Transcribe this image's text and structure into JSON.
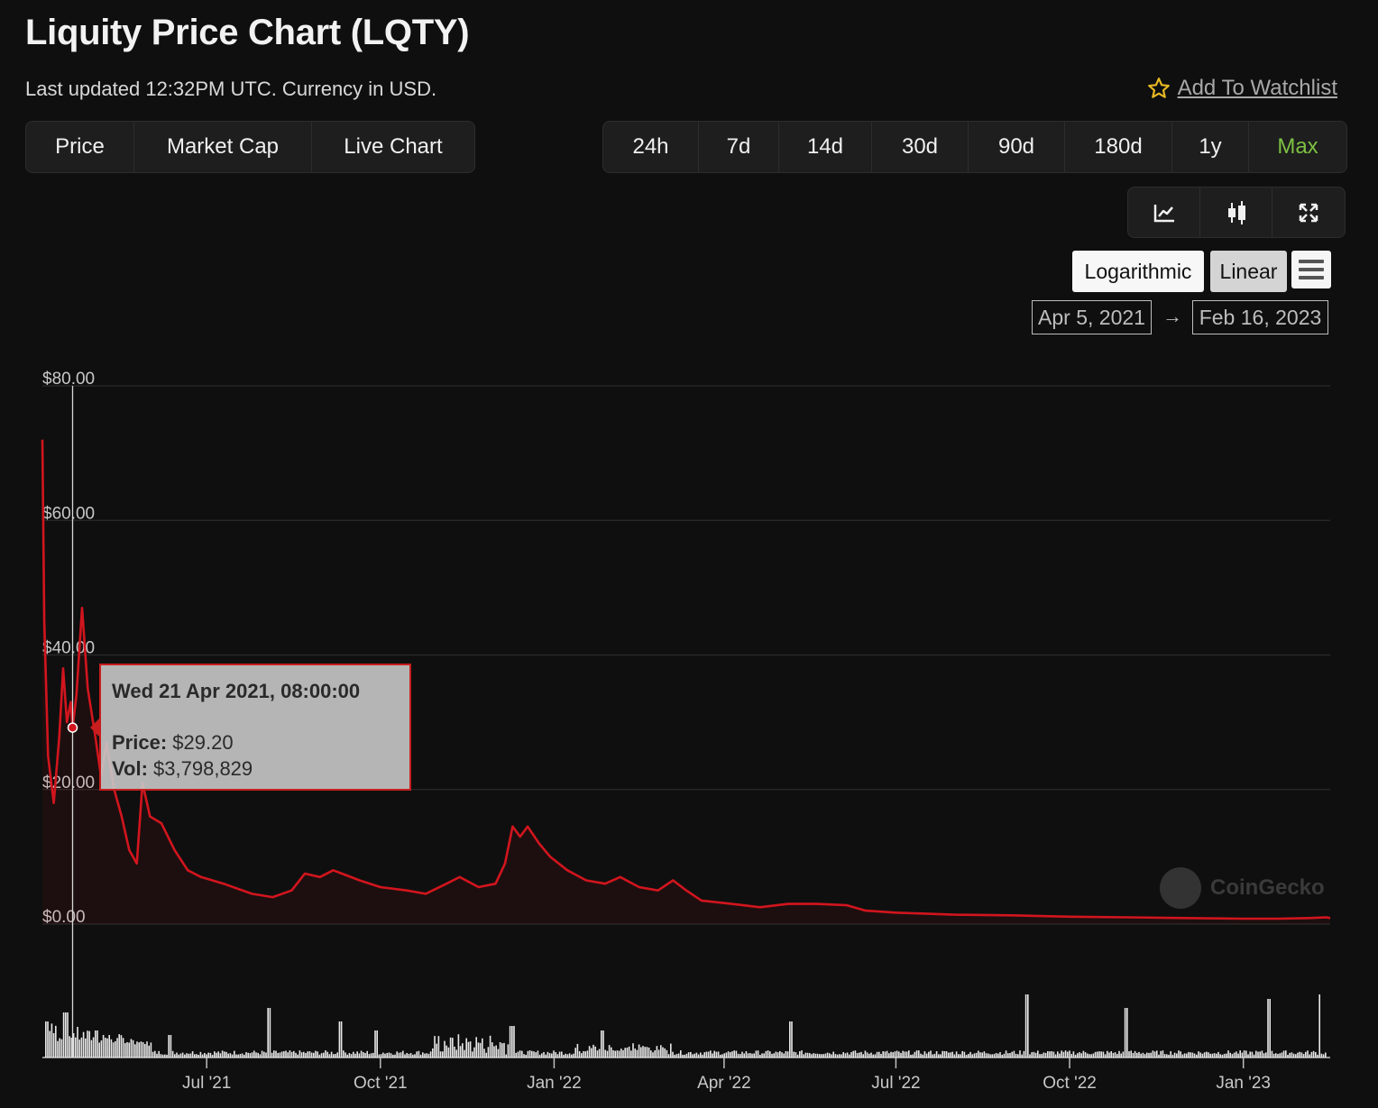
{
  "header": {
    "title": "Liquity Price Chart (LQTY)",
    "subtitle": "Last updated 12:32PM UTC. Currency in USD.",
    "watchlist_label": "Add To Watchlist"
  },
  "view_tabs": [
    "Price",
    "Market Cap",
    "Live Chart"
  ],
  "range_tabs": [
    "24h",
    "7d",
    "14d",
    "30d",
    "90d",
    "180d",
    "1y",
    "Max"
  ],
  "active_range": "Max",
  "chart_type_icons": [
    "line-chart-icon",
    "candlestick-icon",
    "fullscreen-icon"
  ],
  "scale": {
    "log_label": "Logarithmic",
    "linear_label": "Linear",
    "selected": "Linear"
  },
  "date_range": {
    "from": "Apr 5, 2021",
    "arrow": "→",
    "to": "Feb 16, 2023"
  },
  "tooltip": {
    "date": "Wed 21 Apr 2021, 08:00:00",
    "price_label": "Price:",
    "price_value": "$29.20",
    "vol_label": "Vol:",
    "vol_value": "$3,798,829"
  },
  "watermark": "CoinGecko",
  "colors": {
    "line": "#d2151e",
    "active_tab": "#7cc142",
    "background": "#0f0f0f"
  },
  "chart_data": {
    "type": "line",
    "y_ticks": [
      "$80.00",
      "$60.00",
      "$40.00",
      "$20.00",
      "$0.00"
    ],
    "x_ticks": [
      "Jul '21",
      "Oct '21",
      "Jan '22",
      "Apr '22",
      "Jul '22",
      "Oct '22",
      "Jan '23"
    ],
    "ylim": [
      0,
      80
    ],
    "grid": true,
    "series": [
      {
        "values": [
          [
            "2021-04-05",
            72
          ],
          [
            "2021-04-06",
            45
          ],
          [
            "2021-04-08",
            25
          ],
          [
            "2021-04-11",
            18
          ],
          [
            "2021-04-14",
            28
          ],
          [
            "2021-04-16",
            38
          ],
          [
            "2021-04-18",
            30
          ],
          [
            "2021-04-20",
            33
          ],
          [
            "2021-04-21",
            29.2
          ],
          [
            "2021-04-23",
            34
          ],
          [
            "2021-04-26",
            47
          ],
          [
            "2021-04-29",
            35
          ],
          [
            "2021-05-03",
            28
          ],
          [
            "2021-05-06",
            22
          ],
          [
            "2021-05-09",
            27
          ],
          [
            "2021-05-13",
            20
          ],
          [
            "2021-05-17",
            16
          ],
          [
            "2021-05-21",
            11
          ],
          [
            "2021-05-25",
            9
          ],
          [
            "2021-05-28",
            21
          ],
          [
            "2021-06-01",
            16
          ],
          [
            "2021-06-07",
            15
          ],
          [
            "2021-06-14",
            11
          ],
          [
            "2021-06-21",
            8
          ],
          [
            "2021-06-28",
            7
          ],
          [
            "2021-07-10",
            6
          ],
          [
            "2021-07-25",
            4.5
          ],
          [
            "2021-08-05",
            4
          ],
          [
            "2021-08-15",
            5
          ],
          [
            "2021-08-22",
            7.5
          ],
          [
            "2021-08-30",
            7
          ],
          [
            "2021-09-06",
            8
          ],
          [
            "2021-09-20",
            6.5
          ],
          [
            "2021-10-01",
            5.5
          ],
          [
            "2021-10-15",
            5
          ],
          [
            "2021-10-25",
            4.5
          ],
          [
            "2021-11-05",
            6
          ],
          [
            "2021-11-12",
            7
          ],
          [
            "2021-11-22",
            5.5
          ],
          [
            "2021-12-01",
            6
          ],
          [
            "2021-12-06",
            9
          ],
          [
            "2021-12-10",
            14.5
          ],
          [
            "2021-12-14",
            13
          ],
          [
            "2021-12-18",
            14.5
          ],
          [
            "2021-12-24",
            12
          ],
          [
            "2021-12-30",
            10
          ],
          [
            "2022-01-08",
            8
          ],
          [
            "2022-01-18",
            6.5
          ],
          [
            "2022-01-28",
            6
          ],
          [
            "2022-02-05",
            7
          ],
          [
            "2022-02-15",
            5.5
          ],
          [
            "2022-02-25",
            5
          ],
          [
            "2022-03-05",
            6.5
          ],
          [
            "2022-03-12",
            5
          ],
          [
            "2022-03-20",
            3.5
          ],
          [
            "2022-04-05",
            3
          ],
          [
            "2022-04-20",
            2.5
          ],
          [
            "2022-05-05",
            3
          ],
          [
            "2022-05-20",
            3
          ],
          [
            "2022-06-05",
            2.8
          ],
          [
            "2022-06-15",
            2
          ],
          [
            "2022-07-01",
            1.7
          ],
          [
            "2022-08-01",
            1.4
          ],
          [
            "2022-09-01",
            1.3
          ],
          [
            "2022-10-01",
            1.1
          ],
          [
            "2022-11-01",
            1.0
          ],
          [
            "2022-12-01",
            0.9
          ],
          [
            "2023-01-01",
            0.8
          ],
          [
            "2023-01-20",
            0.8
          ],
          [
            "2023-02-05",
            0.9
          ],
          [
            "2023-02-14",
            1.0
          ],
          [
            "2023-02-16",
            0.9
          ]
        ]
      }
    ]
  }
}
